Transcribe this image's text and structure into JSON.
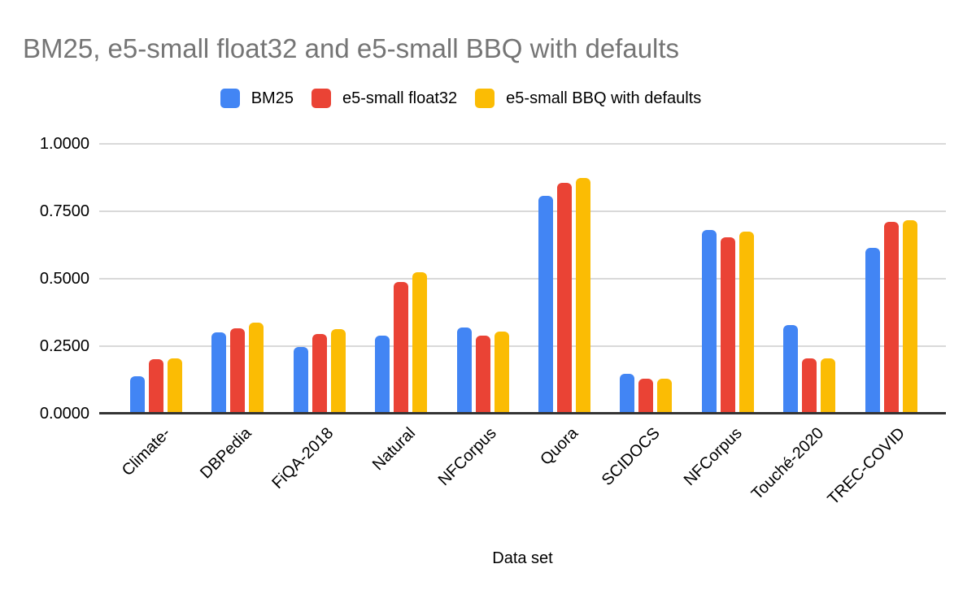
{
  "title": "BM25, e5-small float32 and e5-small BBQ with defaults",
  "x_axis_title": "Data set",
  "colors": {
    "series_blue": "#4285F4",
    "series_red": "#EA4335",
    "series_yellow": "#FBBC04",
    "title_text": "#757575",
    "gridline": "#D9D9D9",
    "axis_line": "#333333",
    "label_text": "#000000",
    "background": "#FFFFFF"
  },
  "chart_data": {
    "type": "bar",
    "title": "BM25, e5-small float32 and e5-small BBQ with defaults",
    "xlabel": "Data set",
    "ylabel": "",
    "ylim": [
      0,
      1
    ],
    "grid": true,
    "legend_position": "top",
    "categories": [
      "Climate-",
      "DBPedia",
      "FiQA-2018",
      "Natural",
      "NFCorpus",
      "Quora",
      "SCIDOCS",
      "NFCorpus",
      "Touché-2020",
      "TREC-COVID"
    ],
    "series": [
      {
        "name": "BM25",
        "color": "#4285F4",
        "values": [
          0.14,
          0.3,
          0.247,
          0.288,
          0.32,
          0.808,
          0.148,
          0.68,
          0.329,
          0.613
        ]
      },
      {
        "name": "e5-small float32",
        "color": "#EA4335",
        "values": [
          0.201,
          0.315,
          0.296,
          0.487,
          0.288,
          0.855,
          0.13,
          0.655,
          0.206,
          0.71
        ]
      },
      {
        "name": "e5-small BBQ with defaults",
        "color": "#FBBC04",
        "values": [
          0.206,
          0.338,
          0.314,
          0.524,
          0.303,
          0.872,
          0.13,
          0.676,
          0.206,
          0.717
        ]
      }
    ],
    "yticks": [
      {
        "label": "0.0000",
        "value": 0.0
      },
      {
        "label": "0.2500",
        "value": 0.25
      },
      {
        "label": "0.5000",
        "value": 0.5
      },
      {
        "label": "0.7500",
        "value": 0.75
      },
      {
        "label": "1.0000",
        "value": 1.0
      }
    ]
  }
}
